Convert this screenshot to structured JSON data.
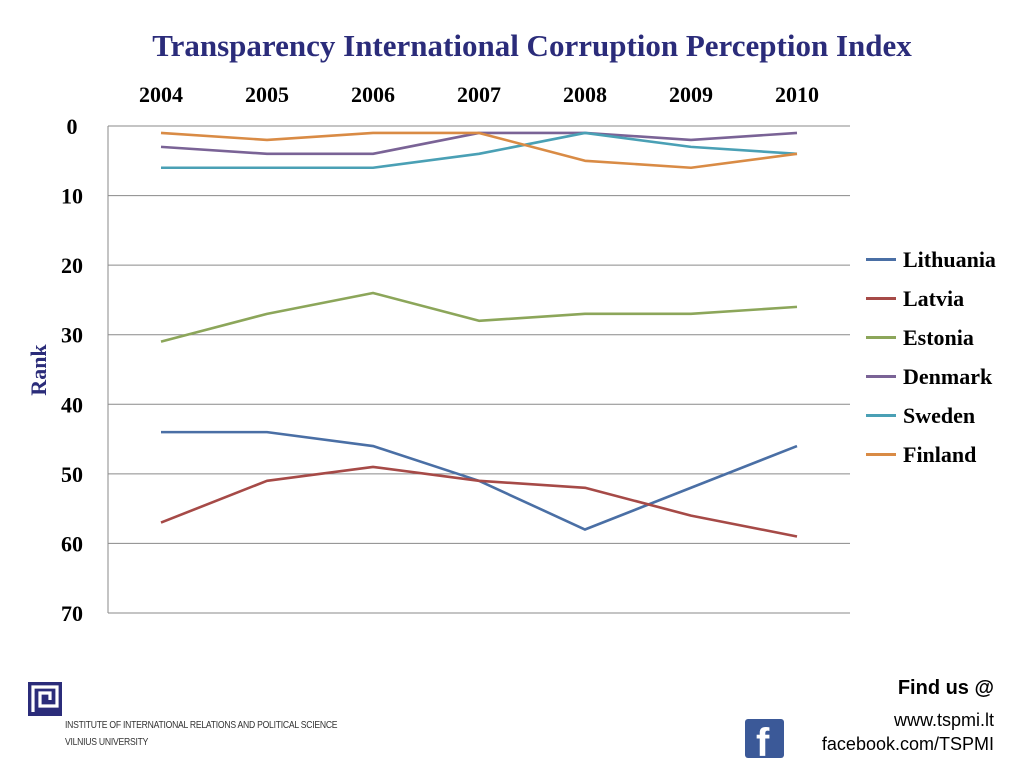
{
  "chart_data": {
    "type": "line",
    "title": "Transparency International Corruption Perception Index",
    "ylabel": "Rank",
    "xlabel": "",
    "categories": [
      "2004",
      "2005",
      "2006",
      "2007",
      "2008",
      "2009",
      "2010"
    ],
    "ylim": [
      0,
      70
    ],
    "y_ticks": [
      0,
      10,
      20,
      30,
      40,
      50,
      60,
      70
    ],
    "y_reversed": true,
    "x_axis_position": "top",
    "grid": true,
    "legend_position": "right",
    "series": [
      {
        "name": "Lithuania",
        "color": "#4a6fa5",
        "values": [
          44,
          44,
          46,
          51,
          58,
          52,
          46
        ]
      },
      {
        "name": "Latvia",
        "color": "#a64a47",
        "values": [
          57,
          51,
          49,
          51,
          52,
          56,
          59
        ]
      },
      {
        "name": "Estonia",
        "color": "#8ca65a",
        "values": [
          31,
          27,
          24,
          28,
          27,
          27,
          26
        ]
      },
      {
        "name": "Denmark",
        "color": "#7a6396",
        "values": [
          3,
          4,
          4,
          1,
          1,
          2,
          1
        ]
      },
      {
        "name": "Sweden",
        "color": "#4aa0b5",
        "values": [
          6,
          6,
          6,
          4,
          1,
          3,
          4
        ]
      },
      {
        "name": "Finland",
        "color": "#d98b45",
        "values": [
          1,
          2,
          1,
          1,
          5,
          6,
          4
        ]
      }
    ]
  },
  "footer": {
    "institute_line1": "INSTITUTE OF INTERNATIONAL RELATIONS AND POLITICAL SCIENCE",
    "institute_line2": "VILNIUS UNIVERSITY",
    "find_us": "Find us @",
    "website": "www.tspmi.lt",
    "facebook": "facebook.com/TSPMI"
  }
}
